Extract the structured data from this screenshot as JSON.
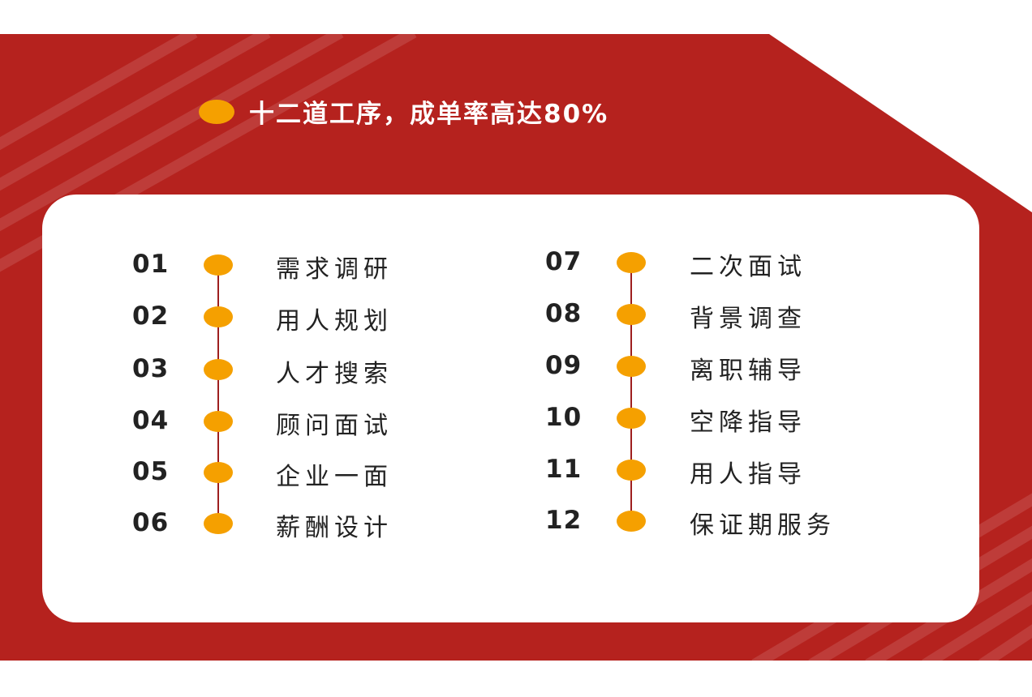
{
  "colors": {
    "background_red": "#b5221e",
    "accent_orange": "#f5a000",
    "line": "#9e1f1f"
  },
  "title": "十二道工序，成单率高达80%",
  "steps_left": [
    {
      "num": "01",
      "label": "需求调研"
    },
    {
      "num": "02",
      "label": "用人规划"
    },
    {
      "num": "03",
      "label": "人才搜索"
    },
    {
      "num": "04",
      "label": "顾问面试"
    },
    {
      "num": "05",
      "label": "企业一面"
    },
    {
      "num": "06",
      "label": "薪酬设计"
    }
  ],
  "steps_right": [
    {
      "num": "07",
      "label": "二次面试"
    },
    {
      "num": "08",
      "label": "背景调查"
    },
    {
      "num": "09",
      "label": "离职辅导"
    },
    {
      "num": "10",
      "label": "空降指导"
    },
    {
      "num": "11",
      "label": "用人指导"
    },
    {
      "num": "12",
      "label": "保证期服务"
    }
  ]
}
